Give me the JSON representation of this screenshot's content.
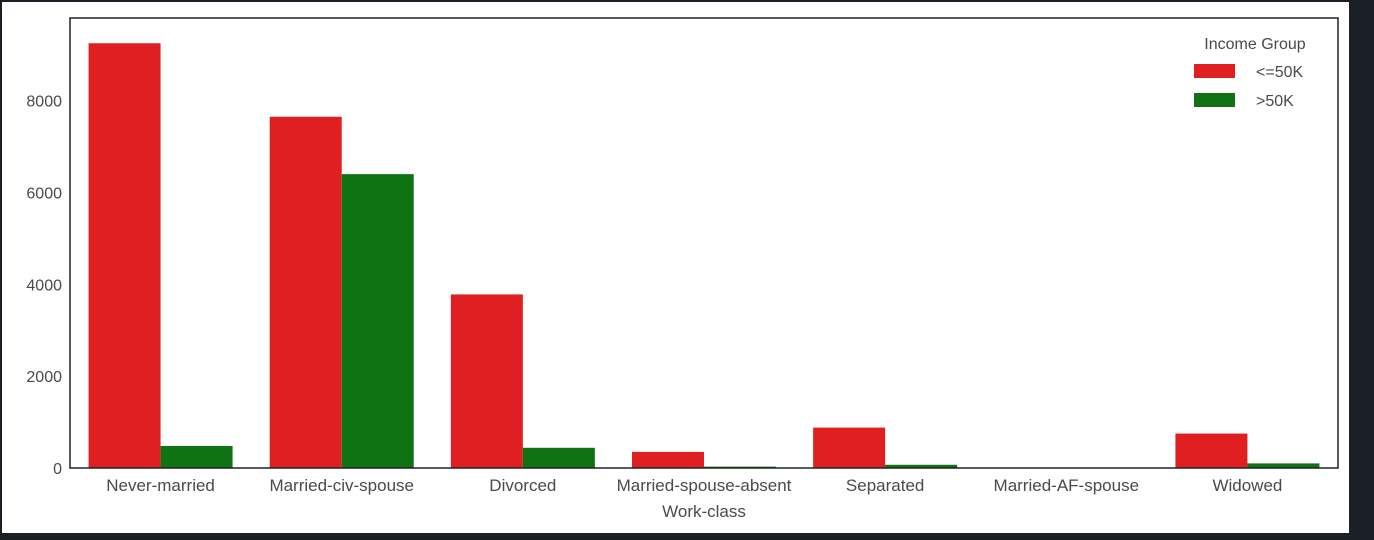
{
  "chart_data": {
    "type": "bar",
    "title": "",
    "xlabel": "Work-class",
    "ylabel": "",
    "categories": [
      "Never-married",
      "Married-civ-spouse",
      "Divorced",
      "Married-spouse-absent",
      "Separated",
      "Married-AF-spouse",
      "Widowed"
    ],
    "series": [
      {
        "name": "<=50K",
        "color": "#e02020",
        "values": [
          9250,
          7650,
          3780,
          350,
          880,
          10,
          750
        ]
      },
      {
        "name": ">50K",
        "color": "#0f7314",
        "values": [
          480,
          6400,
          440,
          30,
          70,
          10,
          100
        ]
      }
    ],
    "ylim": [
      0,
      9800
    ],
    "yticks": [
      "0",
      "2000",
      "4000",
      "6000",
      "8000"
    ],
    "grid": false,
    "legend": {
      "title": "Income Group",
      "position": "top-right"
    }
  }
}
